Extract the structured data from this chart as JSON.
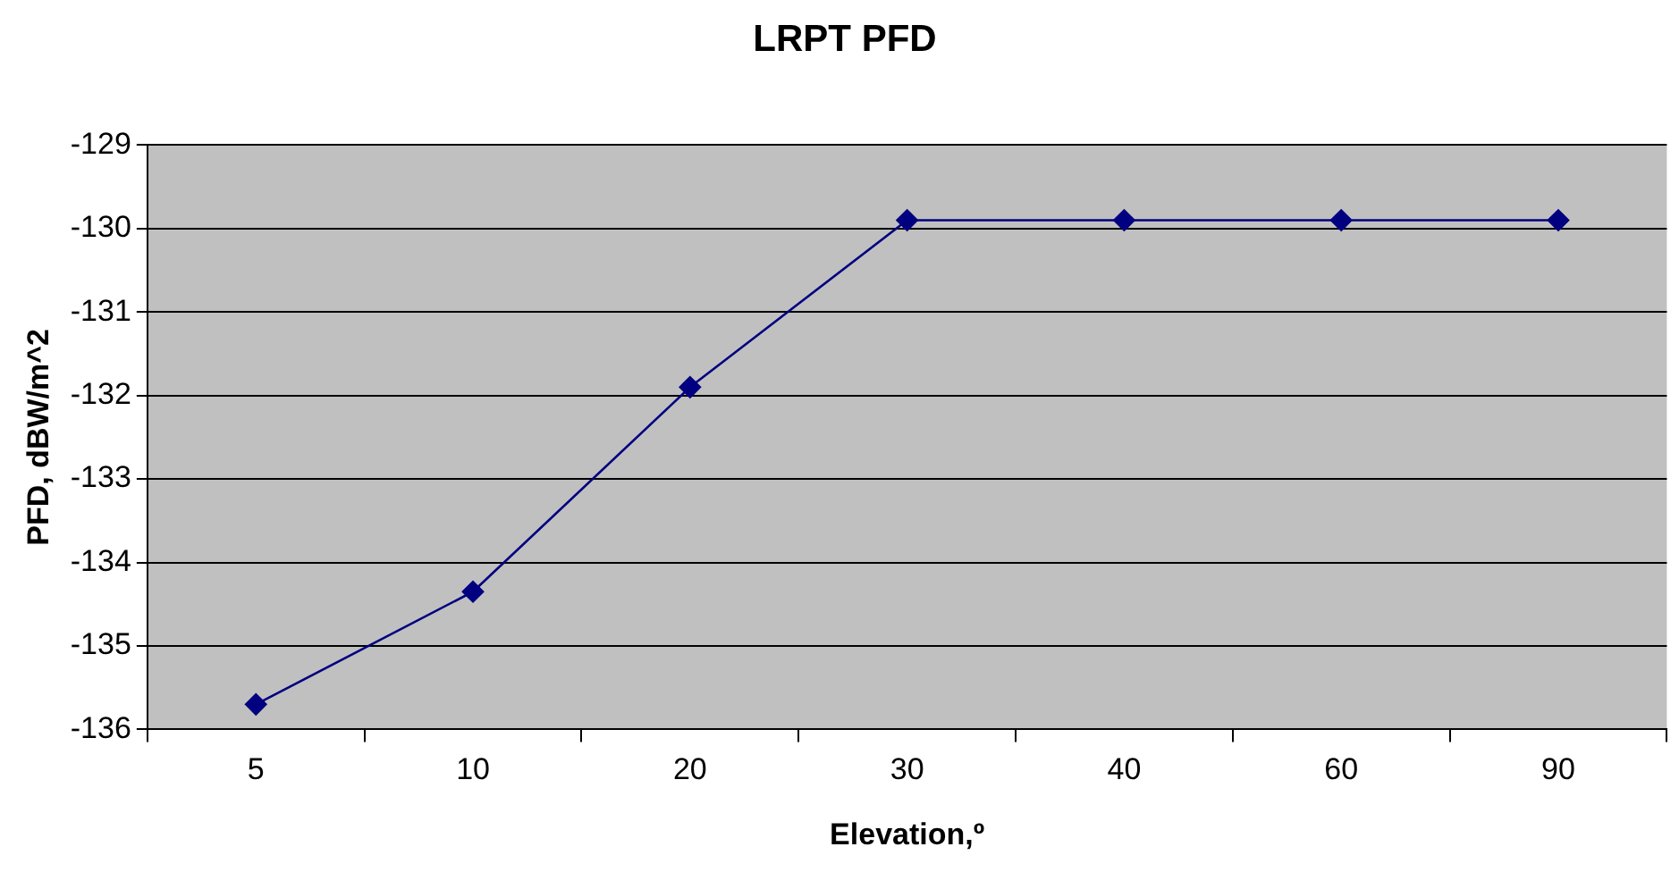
{
  "chart_data": {
    "type": "line",
    "title": "LRPT PFD",
    "xlabel": "Elevation,º",
    "ylabel": "PFD, dBW/m^2",
    "categories": [
      "5",
      "10",
      "20",
      "30",
      "40",
      "60",
      "90"
    ],
    "series": [
      {
        "color": "#000080",
        "values": [
          -135.7,
          -134.35,
          -131.9,
          -129.9,
          -129.9,
          -129.9,
          -129.9
        ]
      }
    ],
    "ylim": [
      -136,
      -129
    ],
    "yticks": [
      -136,
      -135,
      -134,
      -133,
      -132,
      -131,
      -130,
      -129
    ],
    "grid": "y",
    "legend": false,
    "marker": "diamond",
    "line_style": "solid"
  }
}
